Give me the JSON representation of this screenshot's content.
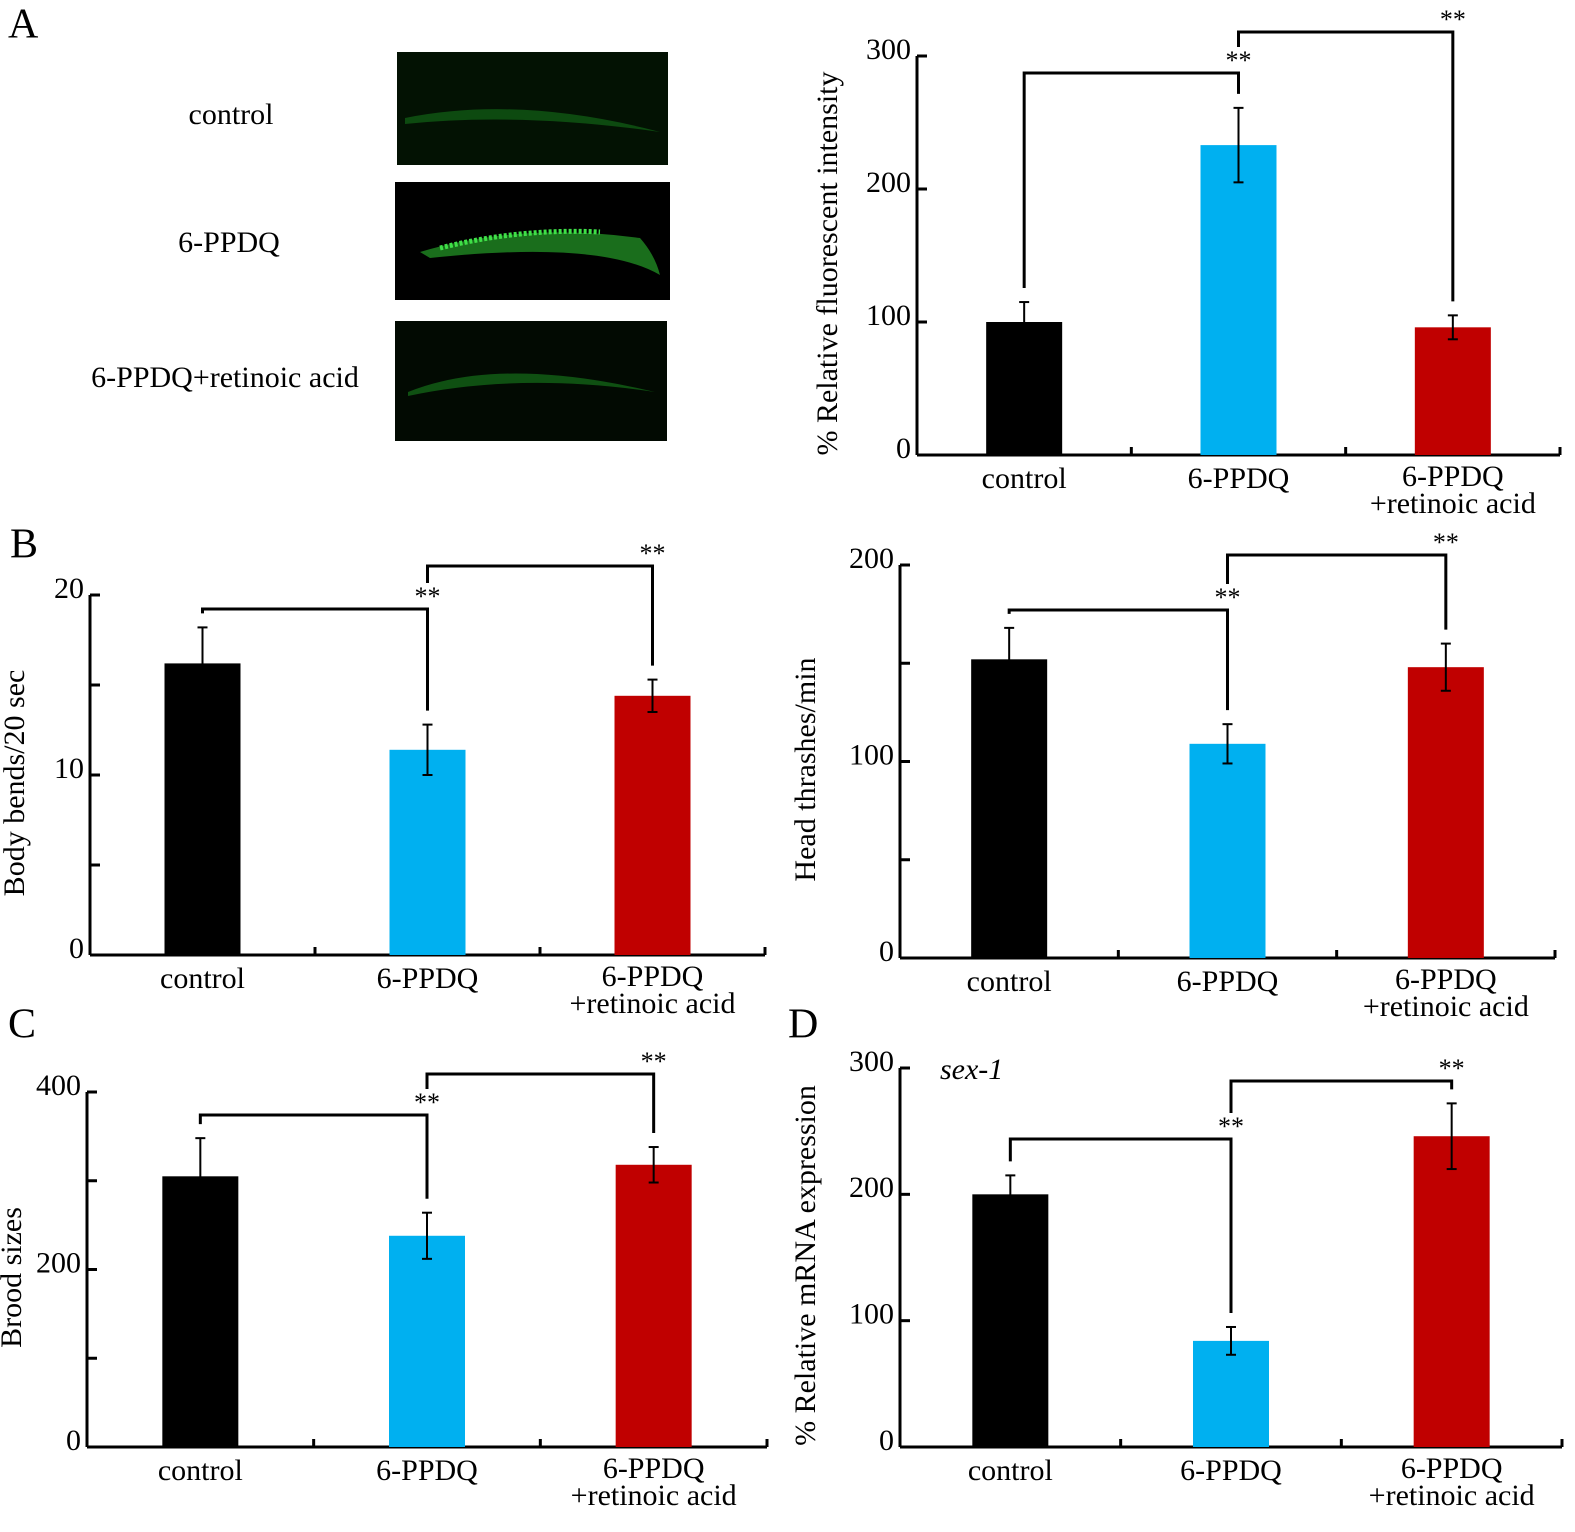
{
  "panel_labels": [
    "A",
    "B",
    "C",
    "D"
  ],
  "images": {
    "labels": [
      "control",
      "6-PPDQ",
      "6-PPDQ+retinoic acid"
    ]
  },
  "chart_data": [
    {
      "type": "bar",
      "ylabel": "% Relative fluorescent intensity",
      "categories": [
        "control",
        "6-PPDQ",
        "6-PPDQ\n+retinoic acid"
      ],
      "values": [
        100,
        233,
        96
      ],
      "errors": [
        15,
        28,
        9
      ],
      "colors": [
        "#000000",
        "#00b0f0",
        "#c00000"
      ],
      "ylim": [
        0,
        300
      ],
      "yticks": [
        0,
        100,
        200,
        300
      ],
      "yminorticks": [],
      "annotations": [
        {
          "from": 0,
          "to": 1,
          "label": "**"
        },
        {
          "from": 1,
          "to": 2,
          "label": "**"
        }
      ]
    },
    {
      "type": "bar",
      "ylabel": "Body bends/20 sec",
      "categories": [
        "control",
        "6-PPDQ",
        "6-PPDQ\n+retinoic acid"
      ],
      "values": [
        16.2,
        11.4,
        14.4
      ],
      "errors": [
        2,
        1.4,
        0.9
      ],
      "colors": [
        "#000000",
        "#00b0f0",
        "#c00000"
      ],
      "ylim": [
        0,
        20
      ],
      "yticks": [
        0,
        10,
        20
      ],
      "yminorticks": [
        5,
        15
      ],
      "annotations": [
        {
          "from": 0,
          "to": 1,
          "label": "**"
        },
        {
          "from": 1,
          "to": 2,
          "label": "**"
        }
      ]
    },
    {
      "type": "bar",
      "ylabel": "Head thrashes/min",
      "categories": [
        "control",
        "6-PPDQ",
        "6-PPDQ\n+retinoic acid"
      ],
      "values": [
        152,
        109,
        148
      ],
      "errors": [
        16,
        10,
        12
      ],
      "colors": [
        "#000000",
        "#00b0f0",
        "#c00000"
      ],
      "ylim": [
        0,
        200
      ],
      "yticks": [
        0,
        100,
        200
      ],
      "yminorticks": [
        50,
        150
      ],
      "annotations": [
        {
          "from": 0,
          "to": 1,
          "label": "**"
        },
        {
          "from": 1,
          "to": 2,
          "label": "**"
        }
      ]
    },
    {
      "type": "bar",
      "ylabel": "Brood sizes",
      "categories": [
        "control",
        "6-PPDQ",
        "6-PPDQ\n+retinoic acid"
      ],
      "values": [
        305,
        238,
        318
      ],
      "errors": [
        43,
        26,
        20
      ],
      "colors": [
        "#000000",
        "#00b0f0",
        "#c00000"
      ],
      "ylim": [
        0,
        400
      ],
      "yticks": [
        0,
        200,
        400
      ],
      "yminorticks": [
        100,
        300
      ],
      "annotations": [
        {
          "from": 0,
          "to": 1,
          "label": "**"
        },
        {
          "from": 1,
          "to": 2,
          "label": "**"
        }
      ]
    },
    {
      "type": "bar",
      "ylabel": "% Relative mRNA expression",
      "subtitle": "sex-1",
      "categories": [
        "control",
        "6-PPDQ",
        "6-PPDQ\n+retinoic acid"
      ],
      "values": [
        200,
        84,
        246
      ],
      "errors": [
        15,
        11,
        26
      ],
      "colors": [
        "#000000",
        "#00b0f0",
        "#c00000"
      ],
      "ylim": [
        0,
        300
      ],
      "yticks": [
        0,
        100,
        200,
        300
      ],
      "yminorticks": [],
      "annotations": [
        {
          "from": 0,
          "to": 1,
          "label": "**"
        },
        {
          "from": 1,
          "to": 2,
          "label": "**"
        }
      ]
    }
  ]
}
